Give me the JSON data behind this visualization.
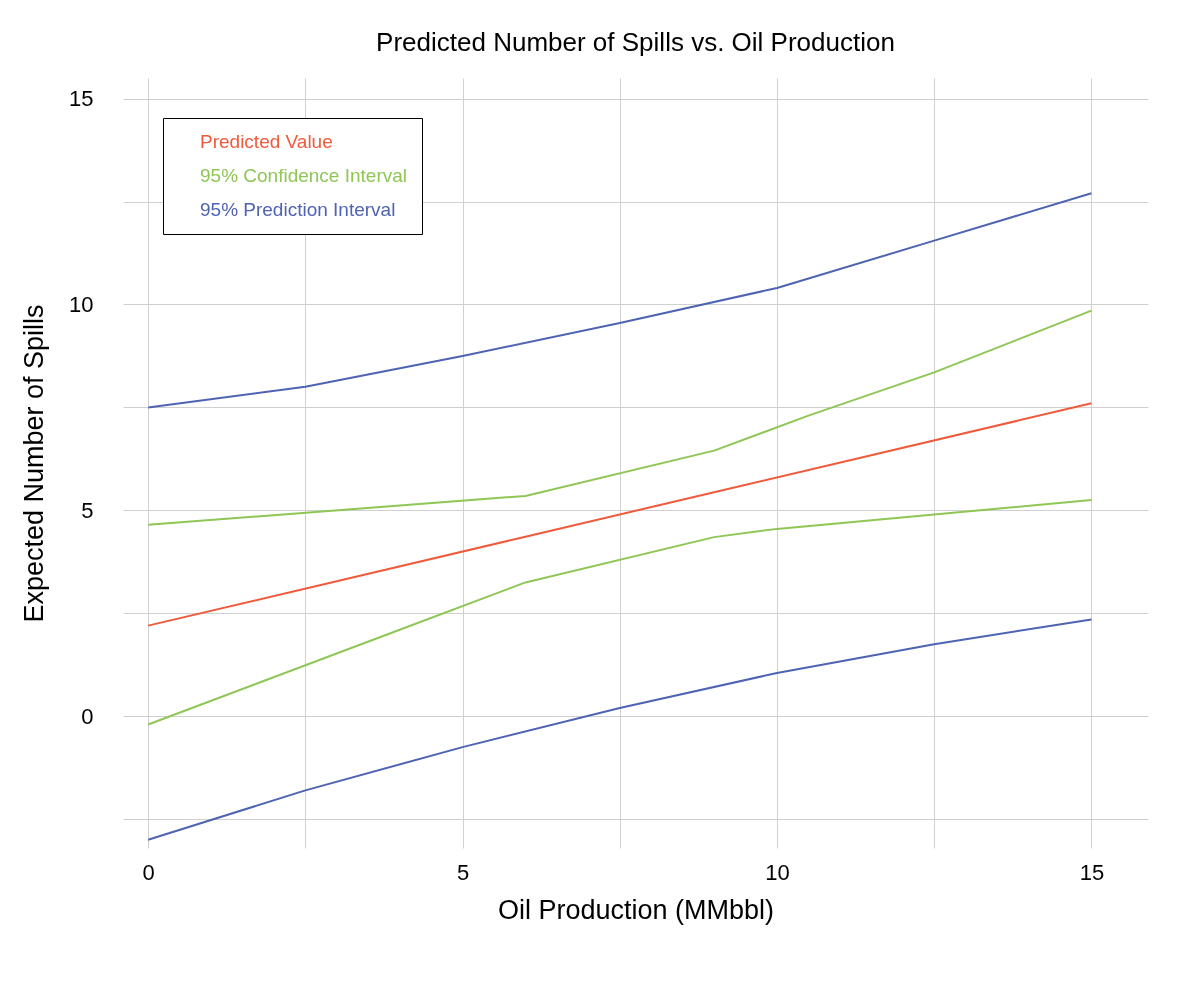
{
  "chart_data": {
    "type": "line",
    "title": "Predicted Number of Spills vs. Oil Production",
    "xlabel": "Oil Production (MMbbl)",
    "ylabel": "Expected Number of Spills",
    "series": [
      {
        "name": "Predicted Value",
        "color": "#f05a3c",
        "x": [
          0,
          6,
          9,
          15
        ],
        "values": [
          2.2,
          4.36,
          5.44,
          7.6
        ]
      },
      {
        "name": "95% Confidence Interval",
        "color": "#8fc655",
        "x": [
          0,
          6,
          9,
          10.5,
          12.5,
          15
        ],
        "values": [
          4.65,
          5.35,
          6.45,
          7.3,
          8.35,
          9.85
        ]
      },
      {
        "color": "#8fc655",
        "x": [
          0,
          4,
          6,
          9,
          10,
          12.5,
          15
        ],
        "values": [
          -0.2,
          2.1,
          3.25,
          4.35,
          4.55,
          4.9,
          5.25
        ]
      },
      {
        "name": "95% Prediction Interval",
        "color": "#4f63b3",
        "x": [
          0,
          2.5,
          5,
          7.5,
          10,
          12.5,
          15
        ],
        "values": [
          7.5,
          8.0,
          8.75,
          9.55,
          10.4,
          11.55,
          12.7
        ]
      },
      {
        "color": "#4f63b3",
        "x": [
          0,
          2.5,
          5,
          7.5,
          10,
          12.5,
          15
        ],
        "values": [
          -3.0,
          -1.8,
          -0.75,
          0.2,
          1.05,
          1.75,
          2.35
        ]
      }
    ],
    "xlim": [
      -0.4,
      15.9
    ],
    "xticks": [
      0,
      {
        "value": 2.5,
        "label": null
      },
      5,
      {
        "value": 7.5,
        "label": null
      },
      10,
      {
        "value": 12.5,
        "label": null
      },
      15
    ],
    "ylim": [
      -3.2,
      15.5
    ],
    "yticks": [
      {
        "value": -2.5,
        "label": null
      },
      0,
      {
        "value": 2.5,
        "label": null
      },
      5,
      {
        "value": 7.5,
        "label": null
      },
      10,
      {
        "value": 12.5,
        "label": null
      },
      15
    ],
    "grid": true,
    "legend": "top left",
    "line_style": "solid",
    "marker": "none"
  }
}
